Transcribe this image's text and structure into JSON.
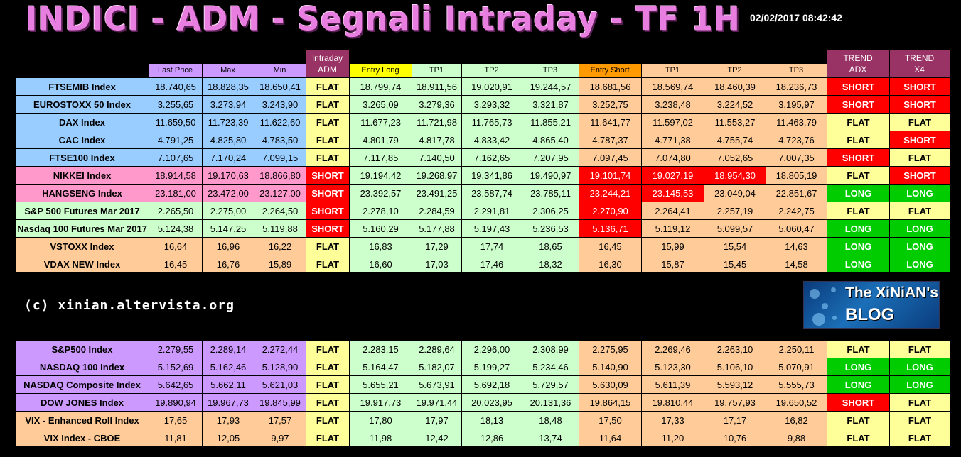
{
  "title": "INDICI - ADM - Segnali Intraday - TF 1H",
  "timestamp": "02/02/2017 08:42:42",
  "copyright": "(c) xinian.altervista.org",
  "logo": {
    "line1": "The XiNiAN's",
    "line2": "BLOG"
  },
  "headers": {
    "last_price": "Last Price",
    "max": "Max",
    "min": "Min",
    "intraday_adm": [
      "Intraday",
      "ADM"
    ],
    "entry_long": "Entry Long",
    "tp1_long": "TP1",
    "tp2_long": "TP2",
    "tp3_long": "TP3",
    "entry_short": "Entry Short",
    "tp1_short": "TP1",
    "tp2_short": "TP2",
    "tp3_short": "TP3",
    "trend_adx": [
      "TREND",
      "ADX"
    ],
    "trend_x4": [
      "TREND",
      "X4"
    ]
  },
  "colors": {
    "blue": "#99ccff",
    "pink": "#ff99cc",
    "green": "#ccffcc",
    "orange": "#ffcc99",
    "purple": "#cc99ff",
    "flat": "#ffff99",
    "short": "#ff0000",
    "long": "#00cc00"
  },
  "table1": [
    {
      "name": "FTSEMIB Index",
      "group": "blue",
      "last": "18.740,65",
      "max": "18.828,35",
      "min": "18.650,41",
      "adm": "FLAT",
      "el": "18.799,74",
      "tp1l": "18.911,56",
      "tp2l": "19.020,91",
      "tp3l": "19.244,57",
      "es": "18.681,56",
      "tp1s": "18.569,74",
      "tp2s": "18.460,39",
      "tp3s": "18.236,73",
      "adx": "SHORT",
      "x4": "SHORT",
      "hl": []
    },
    {
      "name": "EUROSTOXX 50 Index",
      "group": "blue",
      "last": "3.255,65",
      "max": "3.273,94",
      "min": "3.243,90",
      "adm": "FLAT",
      "el": "3.265,09",
      "tp1l": "3.279,36",
      "tp2l": "3.293,32",
      "tp3l": "3.321,87",
      "es": "3.252,75",
      "tp1s": "3.238,48",
      "tp2s": "3.224,52",
      "tp3s": "3.195,97",
      "adx": "SHORT",
      "x4": "SHORT",
      "hl": []
    },
    {
      "name": "DAX Index",
      "group": "blue",
      "last": "11.659,50",
      "max": "11.723,39",
      "min": "11.622,60",
      "adm": "FLAT",
      "el": "11.677,23",
      "tp1l": "11.721,98",
      "tp2l": "11.765,73",
      "tp3l": "11.855,21",
      "es": "11.641,77",
      "tp1s": "11.597,02",
      "tp2s": "11.553,27",
      "tp3s": "11.463,79",
      "adx": "FLAT",
      "x4": "FLAT",
      "hl": []
    },
    {
      "name": "CAC Index",
      "group": "blue",
      "last": "4.791,25",
      "max": "4.825,80",
      "min": "4.783,50",
      "adm": "FLAT",
      "el": "4.801,79",
      "tp1l": "4.817,78",
      "tp2l": "4.833,42",
      "tp3l": "4.865,40",
      "es": "4.787,37",
      "tp1s": "4.771,38",
      "tp2s": "4.755,74",
      "tp3s": "4.723,76",
      "adx": "FLAT",
      "x4": "SHORT",
      "hl": []
    },
    {
      "name": "FTSE100 Index",
      "group": "blue",
      "last": "7.107,65",
      "max": "7.170,24",
      "min": "7.099,15",
      "adm": "FLAT",
      "el": "7.117,85",
      "tp1l": "7.140,50",
      "tp2l": "7.162,65",
      "tp3l": "7.207,95",
      "es": "7.097,45",
      "tp1s": "7.074,80",
      "tp2s": "7.052,65",
      "tp3s": "7.007,35",
      "adx": "SHORT",
      "x4": "FLAT",
      "hl": []
    },
    {
      "name": "NIKKEI Index",
      "group": "pink",
      "last": "18.914,58",
      "max": "19.170,63",
      "min": "18.866,80",
      "adm": "SHORT",
      "el": "19.194,42",
      "tp1l": "19.268,97",
      "tp2l": "19.341,86",
      "tp3l": "19.490,97",
      "es": "19.101,74",
      "tp1s": "19.027,19",
      "tp2s": "18.954,30",
      "tp3s": "18.805,19",
      "adx": "FLAT",
      "x4": "SHORT",
      "hl": [
        "es",
        "tp1s",
        "tp2s"
      ]
    },
    {
      "name": "HANGSENG Index",
      "group": "pink",
      "last": "23.181,00",
      "max": "23.472,00",
      "min": "23.127,00",
      "adm": "SHORT",
      "el": "23.392,57",
      "tp1l": "23.491,25",
      "tp2l": "23.587,74",
      "tp3l": "23.785,11",
      "es": "23.244,21",
      "tp1s": "23.145,53",
      "tp2s": "23.049,04",
      "tp3s": "22.851,67",
      "adx": "LONG",
      "x4": "LONG",
      "hl": [
        "es",
        "tp1s"
      ]
    },
    {
      "name": "S&P 500 Futures Mar 2017",
      "group": "green",
      "last": "2.265,50",
      "max": "2.275,00",
      "min": "2.264,50",
      "adm": "SHORT",
      "el": "2.278,10",
      "tp1l": "2.284,59",
      "tp2l": "2.291,81",
      "tp3l": "2.306,25",
      "es": "2.270,90",
      "tp1s": "2.264,41",
      "tp2s": "2.257,19",
      "tp3s": "2.242,75",
      "adx": "FLAT",
      "x4": "FLAT",
      "hl": [
        "es"
      ]
    },
    {
      "name": "Nasdaq 100 Futures Mar 2017",
      "group": "green",
      "last": "5.124,38",
      "max": "5.147,25",
      "min": "5.119,88",
      "adm": "SHORT",
      "el": "5.160,29",
      "tp1l": "5.177,88",
      "tp2l": "5.197,43",
      "tp3l": "5.236,53",
      "es": "5.136,71",
      "tp1s": "5.119,12",
      "tp2s": "5.099,57",
      "tp3s": "5.060,47",
      "adx": "LONG",
      "x4": "LONG",
      "hl": [
        "es"
      ]
    },
    {
      "name": "VSTOXX Index",
      "group": "orange",
      "last": "16,64",
      "max": "16,96",
      "min": "16,22",
      "adm": "FLAT",
      "el": "16,83",
      "tp1l": "17,29",
      "tp2l": "17,74",
      "tp3l": "18,65",
      "es": "16,45",
      "tp1s": "15,99",
      "tp2s": "15,54",
      "tp3s": "14,63",
      "adx": "LONG",
      "x4": "LONG",
      "hl": []
    },
    {
      "name": "VDAX NEW Index",
      "group": "orange",
      "last": "16,45",
      "max": "16,76",
      "min": "15,89",
      "adm": "FLAT",
      "el": "16,60",
      "tp1l": "17,03",
      "tp2l": "17,46",
      "tp3l": "18,32",
      "es": "16,30",
      "tp1s": "15,87",
      "tp2s": "15,45",
      "tp3s": "14,58",
      "adx": "LONG",
      "x4": "LONG",
      "hl": []
    }
  ],
  "table2": [
    {
      "name": "S&P500 Index",
      "group": "purple",
      "last": "2.279,55",
      "max": "2.289,14",
      "min": "2.272,44",
      "adm": "FLAT",
      "el": "2.283,15",
      "tp1l": "2.289,64",
      "tp2l": "2.296,00",
      "tp3l": "2.308,99",
      "es": "2.275,95",
      "tp1s": "2.269,46",
      "tp2s": "2.263,10",
      "tp3s": "2.250,11",
      "adx": "FLAT",
      "x4": "FLAT",
      "hl": []
    },
    {
      "name": "NASDAQ 100 Index",
      "group": "purple",
      "last": "5.152,69",
      "max": "5.162,46",
      "min": "5.128,90",
      "adm": "FLAT",
      "el": "5.164,47",
      "tp1l": "5.182,07",
      "tp2l": "5.199,27",
      "tp3l": "5.234,46",
      "es": "5.140,90",
      "tp1s": "5.123,30",
      "tp2s": "5.106,10",
      "tp3s": "5.070,91",
      "adx": "LONG",
      "x4": "LONG",
      "hl": []
    },
    {
      "name": "NASDAQ Composite Index",
      "group": "purple",
      "last": "5.642,65",
      "max": "5.662,11",
      "min": "5.621,03",
      "adm": "FLAT",
      "el": "5.655,21",
      "tp1l": "5.673,91",
      "tp2l": "5.692,18",
      "tp3l": "5.729,57",
      "es": "5.630,09",
      "tp1s": "5.611,39",
      "tp2s": "5.593,12",
      "tp3s": "5.555,73",
      "adx": "LONG",
      "x4": "LONG",
      "hl": []
    },
    {
      "name": "DOW JONES Index",
      "group": "purple",
      "last": "19.890,94",
      "max": "19.967,73",
      "min": "19.845,99",
      "adm": "FLAT",
      "el": "19.917,73",
      "tp1l": "19.971,44",
      "tp2l": "20.023,95",
      "tp3l": "20.131,36",
      "es": "19.864,15",
      "tp1s": "19.810,44",
      "tp2s": "19.757,93",
      "tp3s": "19.650,52",
      "adx": "SHORT",
      "x4": "FLAT",
      "hl": []
    },
    {
      "name": "VIX - Enhanced Roll Index",
      "group": "orange",
      "last": "17,65",
      "max": "17,93",
      "min": "17,57",
      "adm": "FLAT",
      "el": "17,80",
      "tp1l": "17,97",
      "tp2l": "18,13",
      "tp3l": "18,48",
      "es": "17,50",
      "tp1s": "17,33",
      "tp2s": "17,17",
      "tp3s": "16,82",
      "adx": "FLAT",
      "x4": "FLAT",
      "hl": []
    },
    {
      "name": "VIX Index - CBOE",
      "group": "orange",
      "last": "11,81",
      "max": "12,05",
      "min": "9,97",
      "adm": "FLAT",
      "el": "11,98",
      "tp1l": "12,42",
      "tp2l": "12,86",
      "tp3l": "13,74",
      "es": "11,64",
      "tp1s": "11,20",
      "tp2s": "10,76",
      "tp3s": "9,88",
      "adx": "FLAT",
      "x4": "FLAT",
      "hl": []
    }
  ]
}
